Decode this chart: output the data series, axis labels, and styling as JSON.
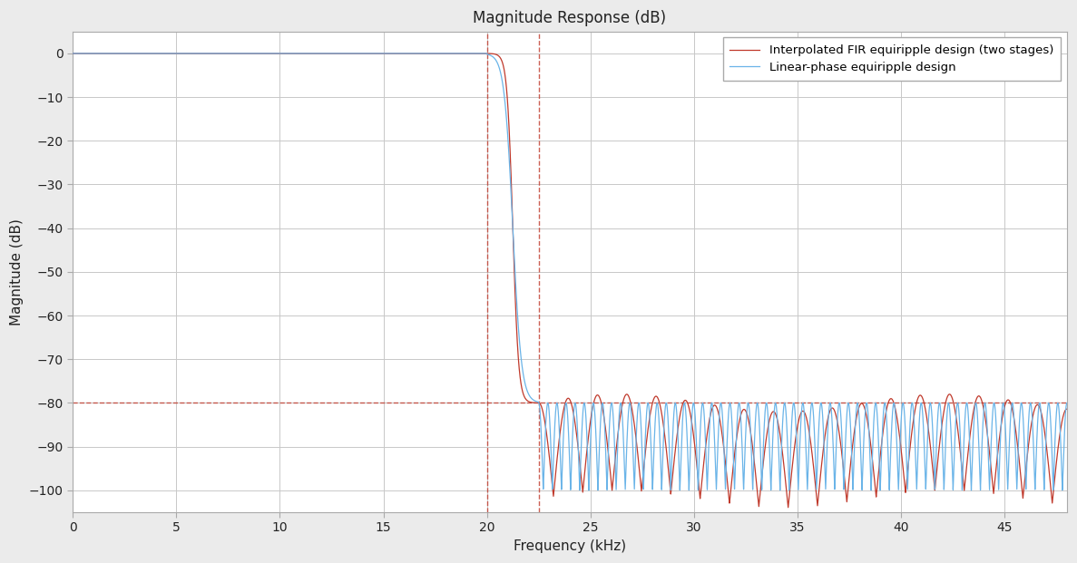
{
  "title": "Magnitude Response (dB)",
  "xlabel": "Frequency (kHz)",
  "ylabel": "Magnitude (dB)",
  "xlim": [
    0,
    48
  ],
  "ylim": [
    -105,
    5
  ],
  "xticks": [
    0,
    5,
    10,
    15,
    20,
    25,
    30,
    35,
    40,
    45
  ],
  "yticks": [
    0,
    -10,
    -20,
    -30,
    -40,
    -50,
    -60,
    -70,
    -80,
    -90,
    -100
  ],
  "passband_edge": 20.0,
  "stopband_edge": 22.5,
  "stopband_atten": -80.0,
  "vline1": 20.0,
  "vline2": 22.5,
  "color_linear": "#6ab4e8",
  "color_ifir": "#c0392b",
  "color_dashed": "#c0392b",
  "legend_labels": [
    "Linear-phase equiripple design",
    "Interpolated FIR equiripple design (two stages)"
  ],
  "bg_color": "#ebebeb",
  "axes_bg_color": "#ffffff",
  "grid_color": "#c8c8c8",
  "n_lobes_linear": 58,
  "n_lobes_ifir": 18,
  "stopband_ripple_linear": 20.0,
  "stopband_ripple_ifir": 22.0
}
